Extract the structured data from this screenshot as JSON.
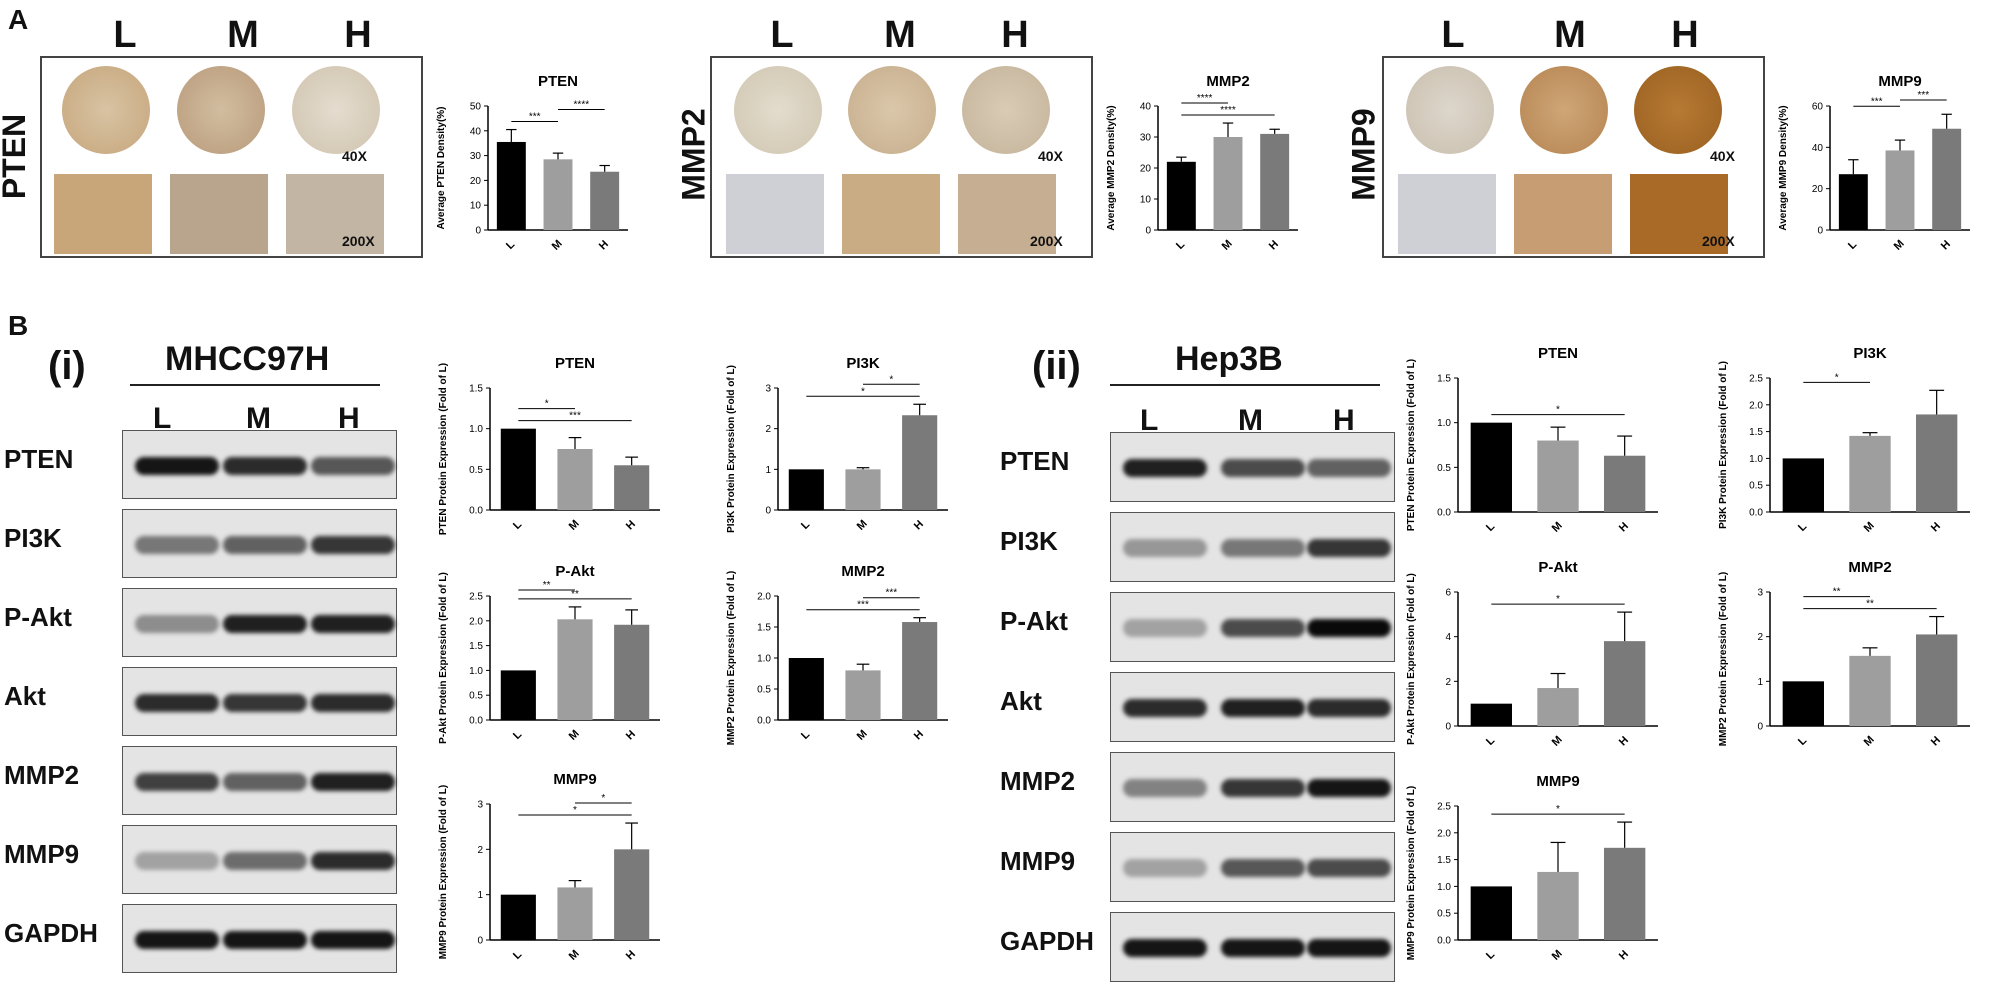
{
  "panelA": {
    "letter": "A",
    "groups": [
      {
        "marker": "PTEN",
        "cols": [
          "L",
          "M",
          "H"
        ],
        "mag_low": "40X",
        "mag_high": "200X"
      },
      {
        "marker": "MMP2",
        "cols": [
          "L",
          "M",
          "H"
        ],
        "mag_low": "40X",
        "mag_high": "200X"
      },
      {
        "marker": "MMP9",
        "cols": [
          "L",
          "M",
          "H"
        ],
        "mag_low": "40X",
        "mag_high": "200X"
      }
    ]
  },
  "panelB": {
    "letter": "B",
    "sub_i": {
      "id": "(i)",
      "cell_line": "MHCC97H",
      "lanes": [
        "L",
        "M",
        "H"
      ],
      "rows": [
        "PTEN",
        "PI3K",
        "P-Akt",
        "Akt",
        "MMP2",
        "MMP9",
        "GAPDH"
      ]
    },
    "sub_ii": {
      "id": "(ii)",
      "cell_line": "Hep3B",
      "lanes": [
        "L",
        "M",
        "H"
      ],
      "rows": [
        "PTEN",
        "PI3K",
        "P-Akt",
        "Akt",
        "MMP2",
        "MMP9",
        "GAPDH"
      ]
    }
  },
  "chart_data": [
    {
      "id": "a_pten",
      "type": "bar",
      "title": "PTEN",
      "ylabel": "Average PTEN Density(%)",
      "categories": [
        "L",
        "M",
        "H"
      ],
      "values": [
        35.5,
        28.5,
        23.5
      ],
      "errors": [
        5,
        2.5,
        2.5
      ],
      "ylim": [
        0,
        50
      ],
      "yticks": [
        0,
        10,
        20,
        30,
        40,
        50
      ],
      "colors": [
        "#000000",
        "#9e9e9e",
        "#7a7a7a"
      ],
      "sig": [
        {
          "from": 0,
          "to": 1,
          "label": "***"
        },
        {
          "from": 1,
          "to": 2,
          "label": "****"
        }
      ]
    },
    {
      "id": "a_mmp2",
      "type": "bar",
      "title": "MMP2",
      "ylabel": "Average MMP2 Density(%)",
      "categories": [
        "L",
        "M",
        "H"
      ],
      "values": [
        22,
        30,
        31
      ],
      "errors": [
        1.5,
        4.5,
        1.5
      ],
      "ylim": [
        0,
        40
      ],
      "yticks": [
        0,
        10,
        20,
        30,
        40
      ],
      "colors": [
        "#000000",
        "#9e9e9e",
        "#7a7a7a"
      ],
      "sig": [
        {
          "from": 0,
          "to": 2,
          "label": "****"
        },
        {
          "from": 0,
          "to": 1,
          "label": "****"
        }
      ]
    },
    {
      "id": "a_mmp9",
      "type": "bar",
      "title": "MMP9",
      "ylabel": "Average MMP9 Density(%)",
      "categories": [
        "L",
        "M",
        "H"
      ],
      "values": [
        27,
        38.5,
        49
      ],
      "errors": [
        7,
        5,
        7
      ],
      "ylim": [
        0,
        60
      ],
      "yticks": [
        0,
        20,
        40,
        60
      ],
      "colors": [
        "#000000",
        "#9e9e9e",
        "#7a7a7a"
      ],
      "sig": [
        {
          "from": 0,
          "to": 1,
          "label": "***"
        },
        {
          "from": 1,
          "to": 2,
          "label": "***"
        }
      ]
    },
    {
      "id": "bi_pten",
      "type": "bar",
      "title": "PTEN",
      "ylabel": "PTEN Protein Expression (Fold of L)",
      "categories": [
        "L",
        "M",
        "H"
      ],
      "values": [
        1.0,
        0.75,
        0.55
      ],
      "errors": [
        0,
        0.14,
        0.1
      ],
      "ylim": [
        0,
        1.5
      ],
      "yticks": [
        0.0,
        0.5,
        1.0,
        1.5
      ],
      "colors": [
        "#000000",
        "#9e9e9e",
        "#7a7a7a"
      ],
      "sig": [
        {
          "from": 0,
          "to": 2,
          "label": "***"
        },
        {
          "from": 0,
          "to": 1,
          "label": "*"
        }
      ]
    },
    {
      "id": "bi_pi3k",
      "type": "bar",
      "title": "PI3K",
      "ylabel": "PI3K Protein Expression (Fold of L)",
      "categories": [
        "L",
        "M",
        "H"
      ],
      "values": [
        1.0,
        1.0,
        2.33
      ],
      "errors": [
        0,
        0.04,
        0.27
      ],
      "ylim": [
        0,
        3
      ],
      "yticks": [
        0,
        1,
        2,
        3
      ],
      "colors": [
        "#000000",
        "#9e9e9e",
        "#7a7a7a"
      ],
      "sig": [
        {
          "from": 0,
          "to": 2,
          "label": "*"
        },
        {
          "from": 1,
          "to": 2,
          "label": "*"
        }
      ]
    },
    {
      "id": "bi_pakt",
      "type": "bar",
      "title": "P-Akt",
      "ylabel": "P-Akt Protein Expression (Fold of L)",
      "categories": [
        "L",
        "M",
        "H"
      ],
      "values": [
        1.0,
        2.03,
        1.92
      ],
      "errors": [
        0,
        0.25,
        0.3
      ],
      "ylim": [
        0,
        2.5
      ],
      "yticks": [
        0.0,
        0.5,
        1.0,
        1.5,
        2.0,
        2.5
      ],
      "colors": [
        "#000000",
        "#9e9e9e",
        "#7a7a7a"
      ],
      "sig": [
        {
          "from": 0,
          "to": 2,
          "label": "**"
        },
        {
          "from": 0,
          "to": 1,
          "label": "**"
        }
      ]
    },
    {
      "id": "bi_mmp2",
      "type": "bar",
      "title": "MMP2",
      "ylabel": "MMP2 Protein Expression (Fold of L)",
      "categories": [
        "L",
        "M",
        "H"
      ],
      "values": [
        1.0,
        0.8,
        1.58
      ],
      "errors": [
        0,
        0.1,
        0.07
      ],
      "ylim": [
        0,
        2.0
      ],
      "yticks": [
        0.0,
        0.5,
        1.0,
        1.5,
        2.0
      ],
      "colors": [
        "#000000",
        "#9e9e9e",
        "#7a7a7a"
      ],
      "sig": [
        {
          "from": 0,
          "to": 2,
          "label": "***"
        },
        {
          "from": 1,
          "to": 2,
          "label": "***"
        }
      ]
    },
    {
      "id": "bi_mmp9",
      "type": "bar",
      "title": "MMP9",
      "ylabel": "MMP9 Protein Expression (Fold of L)",
      "categories": [
        "L",
        "M",
        "H"
      ],
      "values": [
        1.0,
        1.16,
        2.0
      ],
      "errors": [
        0,
        0.15,
        0.58
      ],
      "ylim": [
        0,
        3
      ],
      "yticks": [
        0,
        1,
        2,
        3
      ],
      "colors": [
        "#000000",
        "#9e9e9e",
        "#7a7a7a"
      ],
      "sig": [
        {
          "from": 0,
          "to": 2,
          "label": "*"
        },
        {
          "from": 1,
          "to": 2,
          "label": "*"
        }
      ]
    },
    {
      "id": "bii_pten",
      "type": "bar",
      "title": "PTEN",
      "ylabel": "PTEN Protein Expression (Fold of L)",
      "categories": [
        "L",
        "M",
        "H"
      ],
      "values": [
        1.0,
        0.8,
        0.63
      ],
      "errors": [
        0,
        0.15,
        0.22
      ],
      "ylim": [
        0,
        1.5
      ],
      "yticks": [
        0.0,
        0.5,
        1.0,
        1.5
      ],
      "colors": [
        "#000000",
        "#9e9e9e",
        "#7a7a7a"
      ],
      "sig": [
        {
          "from": 0,
          "to": 2,
          "label": "*"
        }
      ]
    },
    {
      "id": "bii_pi3k",
      "type": "bar",
      "title": "PI3K",
      "ylabel": "PI3K Protein Expression (Fold of L)",
      "categories": [
        "L",
        "M",
        "H"
      ],
      "values": [
        1.0,
        1.42,
        1.82
      ],
      "errors": [
        0,
        0.06,
        0.45
      ],
      "ylim": [
        0,
        2.5
      ],
      "yticks": [
        0.0,
        0.5,
        1.0,
        1.5,
        2.0,
        2.5
      ],
      "colors": [
        "#000000",
        "#9e9e9e",
        "#7a7a7a"
      ],
      "sig": [
        {
          "from": 0,
          "to": 1,
          "label": "*"
        }
      ]
    },
    {
      "id": "bii_pakt",
      "type": "bar",
      "title": "P-Akt",
      "ylabel": "P-Akt Protein Expression (Fold of L)",
      "categories": [
        "L",
        "M",
        "H"
      ],
      "values": [
        1.0,
        1.7,
        3.8
      ],
      "errors": [
        0,
        0.65,
        1.3
      ],
      "ylim": [
        0,
        6
      ],
      "yticks": [
        0,
        2,
        4,
        6
      ],
      "colors": [
        "#000000",
        "#9e9e9e",
        "#7a7a7a"
      ],
      "sig": [
        {
          "from": 0,
          "to": 2,
          "label": "*"
        }
      ]
    },
    {
      "id": "bii_mmp2",
      "type": "bar",
      "title": "MMP2",
      "ylabel": "MMP2 Protein Expression (Fold of L)",
      "categories": [
        "L",
        "M",
        "H"
      ],
      "values": [
        1.0,
        1.57,
        2.05
      ],
      "errors": [
        0,
        0.18,
        0.4
      ],
      "ylim": [
        0,
        3
      ],
      "yticks": [
        0,
        1,
        2,
        3
      ],
      "colors": [
        "#000000",
        "#9e9e9e",
        "#7a7a7a"
      ],
      "sig": [
        {
          "from": 0,
          "to": 2,
          "label": "**"
        },
        {
          "from": 0,
          "to": 1,
          "label": "**"
        }
      ]
    },
    {
      "id": "bii_mmp9",
      "type": "bar",
      "title": "MMP9",
      "ylabel": "MMP9 Protein Expression (Fold of L)",
      "categories": [
        "L",
        "M",
        "H"
      ],
      "values": [
        1.0,
        1.27,
        1.72
      ],
      "errors": [
        0,
        0.55,
        0.48
      ],
      "ylim": [
        0,
        2.5
      ],
      "yticks": [
        0.0,
        0.5,
        1.0,
        1.5,
        2.0,
        2.5
      ],
      "colors": [
        "#000000",
        "#9e9e9e",
        "#7a7a7a"
      ],
      "sig": [
        {
          "from": 0,
          "to": 2,
          "label": "*"
        }
      ]
    }
  ]
}
